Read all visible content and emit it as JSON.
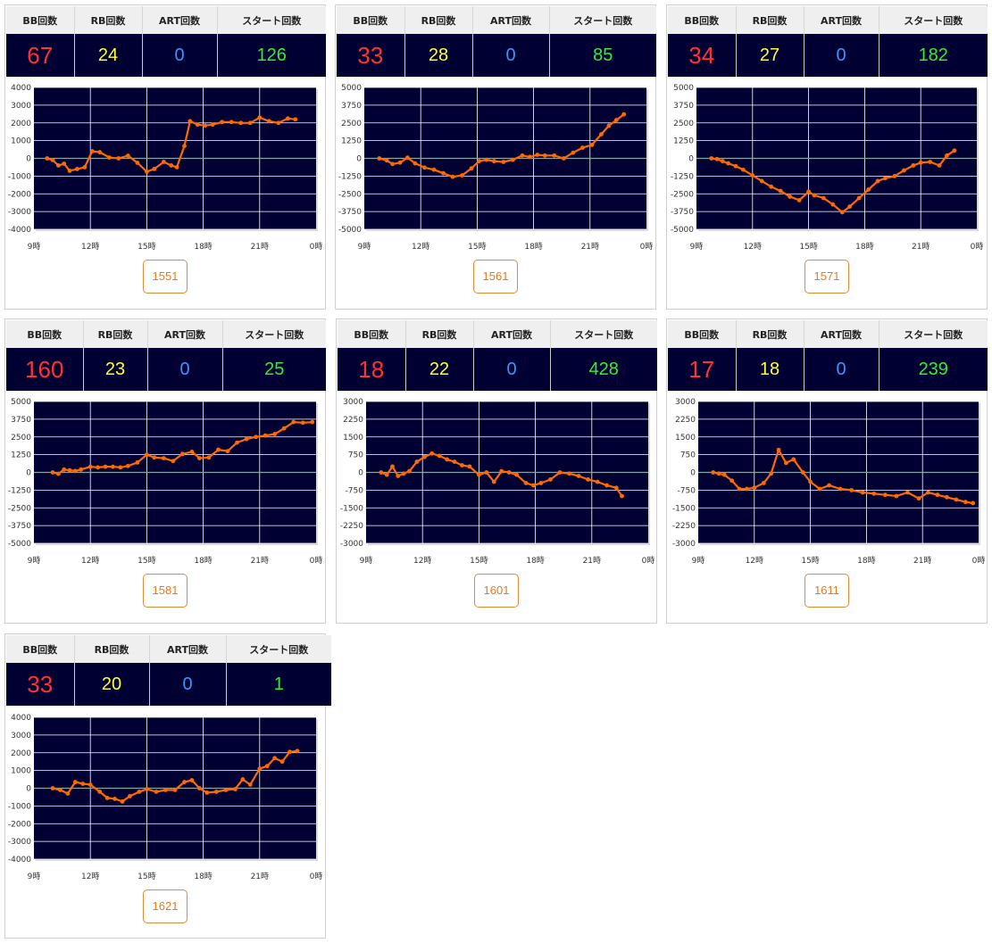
{
  "headers": {
    "bb": "BB回数",
    "rb": "RB回数",
    "art": "ART回数",
    "start": "スタート回数"
  },
  "x_ticks": [
    "9時",
    "12時",
    "15時",
    "18時",
    "21時",
    "0時"
  ],
  "colors": {
    "bb": "#ff3333",
    "rb": "#ffff33",
    "art": "#3399ff",
    "start": "#33ee33",
    "plot_bg": "#000033",
    "line": "#ff6a00",
    "zero_line": "#66cc33",
    "button": "#e07a20"
  },
  "machines": [
    {
      "id": "1551",
      "bb": "67",
      "rb": "24",
      "art": "0",
      "start": "126",
      "chart_data": {
        "type": "line",
        "x_unit": "hour",
        "xlim": [
          9,
          24
        ],
        "ylim": [
          -4000,
          4000
        ],
        "y_ticks": [
          4000,
          3000,
          2000,
          1000,
          0,
          -1000,
          -2000,
          -3000,
          -4000
        ],
        "x": [
          9.7,
          10.0,
          10.3,
          10.6,
          10.9,
          11.3,
          11.7,
          12.1,
          12.5,
          13.0,
          13.5,
          14.0,
          14.5,
          15.0,
          15.4,
          15.9,
          16.3,
          16.6,
          17.0,
          17.3,
          17.7,
          18.1,
          18.5,
          19.0,
          19.5,
          20.0,
          20.5,
          21.0,
          21.5,
          22.0,
          22.5,
          22.9
        ],
        "y": [
          0,
          -100,
          -400,
          -300,
          -700,
          -600,
          -500,
          400,
          350,
          50,
          0,
          150,
          -250,
          -750,
          -600,
          -200,
          -400,
          -500,
          700,
          2100,
          1900,
          1850,
          1900,
          2050,
          2050,
          2000,
          2000,
          2300,
          2100,
          2000,
          2250,
          2200
        ]
      }
    },
    {
      "id": "1561",
      "bb": "33",
      "rb": "28",
      "art": "0",
      "start": "85",
      "chart_data": {
        "type": "line",
        "x_unit": "hour",
        "xlim": [
          9,
          24
        ],
        "ylim": [
          -5000,
          5000
        ],
        "y_ticks": [
          5000,
          3750,
          2500,
          1250,
          0,
          -1250,
          -2500,
          -3750,
          -5000
        ],
        "x": [
          9.8,
          10.2,
          10.5,
          10.9,
          11.3,
          11.7,
          12.2,
          12.7,
          13.2,
          13.7,
          14.2,
          14.7,
          15.1,
          15.5,
          15.9,
          16.4,
          16.9,
          17.4,
          17.8,
          18.2,
          18.6,
          19.1,
          19.6,
          20.1,
          20.6,
          21.1,
          21.6,
          22.0,
          22.4,
          22.8
        ],
        "y": [
          0,
          -150,
          -400,
          -300,
          50,
          -350,
          -650,
          -800,
          -1050,
          -1300,
          -1200,
          -700,
          -200,
          -100,
          -200,
          -250,
          -100,
          200,
          100,
          250,
          200,
          200,
          0,
          400,
          750,
          950,
          1700,
          2300,
          2700,
          3100
        ]
      }
    },
    {
      "id": "1571",
      "bb": "34",
      "rb": "27",
      "art": "0",
      "start": "182",
      "chart_data": {
        "type": "line",
        "x_unit": "hour",
        "xlim": [
          9,
          24
        ],
        "ylim": [
          -5000,
          5000
        ],
        "y_ticks": [
          5000,
          3750,
          2500,
          1250,
          0,
          -1250,
          -2500,
          -3750,
          -5000
        ],
        "x": [
          9.8,
          10.1,
          10.4,
          10.7,
          11.1,
          11.5,
          12.0,
          12.5,
          13.0,
          13.5,
          14.0,
          14.5,
          15.0,
          15.3,
          15.8,
          16.3,
          16.8,
          17.2,
          17.7,
          18.2,
          18.7,
          19.1,
          19.6,
          20.1,
          20.6,
          21.0,
          21.5,
          22.0,
          22.4,
          22.8
        ],
        "y": [
          0,
          -50,
          -200,
          -350,
          -550,
          -800,
          -1200,
          -1600,
          -2000,
          -2300,
          -2700,
          -2950,
          -2350,
          -2600,
          -2800,
          -3250,
          -3800,
          -3400,
          -2800,
          -2200,
          -1600,
          -1400,
          -1250,
          -850,
          -500,
          -300,
          -250,
          -500,
          200,
          550
        ]
      }
    },
    {
      "id": "1581",
      "bb": "160",
      "rb": "23",
      "art": "0",
      "start": "25",
      "chart_data": {
        "type": "line",
        "x_unit": "hour",
        "xlim": [
          9,
          24
        ],
        "ylim": [
          -5000,
          5000
        ],
        "y_ticks": [
          5000,
          3750,
          2500,
          1250,
          0,
          -1250,
          -2500,
          -3750,
          -5000
        ],
        "x": [
          10.0,
          10.3,
          10.6,
          10.9,
          11.2,
          11.5,
          12.0,
          12.4,
          12.8,
          13.2,
          13.6,
          14.0,
          14.5,
          15.0,
          15.4,
          15.9,
          16.4,
          16.9,
          17.4,
          17.8,
          18.3,
          18.8,
          19.3,
          19.8,
          20.3,
          20.8,
          21.3,
          21.8,
          22.3,
          22.8,
          23.3,
          23.8
        ],
        "y": [
          0,
          -100,
          200,
          150,
          100,
          200,
          400,
          350,
          400,
          400,
          350,
          450,
          700,
          1250,
          1050,
          1000,
          800,
          1300,
          1450,
          1000,
          1050,
          1600,
          1500,
          2100,
          2350,
          2500,
          2600,
          2700,
          3100,
          3550,
          3500,
          3550
        ]
      }
    },
    {
      "id": "1601",
      "bb": "18",
      "rb": "22",
      "art": "0",
      "start": "428",
      "chart_data": {
        "type": "line",
        "x_unit": "hour",
        "xlim": [
          9,
          24
        ],
        "ylim": [
          -3000,
          3000
        ],
        "y_ticks": [
          3000,
          2250,
          1500,
          750,
          0,
          -750,
          -1500,
          -2250,
          -3000
        ],
        "x": [
          9.8,
          10.1,
          10.4,
          10.7,
          11.0,
          11.3,
          11.7,
          12.1,
          12.5,
          12.9,
          13.3,
          13.7,
          14.1,
          14.5,
          15.0,
          15.4,
          15.8,
          16.2,
          16.6,
          17.0,
          17.5,
          17.9,
          18.3,
          18.8,
          19.3,
          19.8,
          20.3,
          20.8,
          21.3,
          21.8,
          22.3,
          22.6
        ],
        "y": [
          0,
          -100,
          250,
          -150,
          -50,
          50,
          450,
          650,
          800,
          700,
          550,
          450,
          300,
          250,
          -100,
          0,
          -400,
          50,
          0,
          -100,
          -450,
          -550,
          -450,
          -300,
          0,
          -50,
          -150,
          -300,
          -400,
          -550,
          -650,
          -1000
        ]
      }
    },
    {
      "id": "1611",
      "bb": "17",
      "rb": "18",
      "art": "0",
      "start": "239",
      "chart_data": {
        "type": "line",
        "x_unit": "hour",
        "xlim": [
          9,
          24
        ],
        "ylim": [
          -3000,
          3000
        ],
        "y_ticks": [
          3000,
          2250,
          1500,
          750,
          0,
          -750,
          -1500,
          -2250,
          -3000
        ],
        "x": [
          9.8,
          10.1,
          10.4,
          10.8,
          11.2,
          11.6,
          12.0,
          12.5,
          12.9,
          13.3,
          13.7,
          14.1,
          14.6,
          15.0,
          15.5,
          16.0,
          16.6,
          17.2,
          17.8,
          18.4,
          19.0,
          19.6,
          20.2,
          20.8,
          21.3,
          21.8,
          22.3,
          22.8,
          23.3,
          23.7
        ],
        "y": [
          0,
          -50,
          -100,
          -350,
          -700,
          -700,
          -650,
          -450,
          -50,
          950,
          400,
          550,
          0,
          -400,
          -700,
          -550,
          -700,
          -750,
          -850,
          -900,
          -950,
          -1000,
          -850,
          -1100,
          -850,
          -950,
          -1050,
          -1150,
          -1250,
          -1300
        ]
      }
    },
    {
      "id": "1621",
      "bb": "33",
      "rb": "20",
      "art": "0",
      "start": "1",
      "chart_data": {
        "type": "line",
        "x_unit": "hour",
        "xlim": [
          9,
          24
        ],
        "ylim": [
          -4000,
          4000
        ],
        "y_ticks": [
          4000,
          3000,
          2000,
          1000,
          0,
          -1000,
          -2000,
          -3000,
          -4000
        ],
        "x": [
          10.0,
          10.4,
          10.8,
          11.2,
          11.6,
          12.0,
          12.5,
          12.9,
          13.3,
          13.7,
          14.1,
          14.6,
          15.0,
          15.5,
          16.0,
          16.5,
          17.0,
          17.4,
          17.8,
          18.2,
          18.7,
          19.2,
          19.7,
          20.1,
          20.5,
          21.0,
          21.4,
          21.8,
          22.2,
          22.6,
          23.0
        ],
        "y": [
          0,
          -100,
          -300,
          350,
          250,
          200,
          -200,
          -550,
          -600,
          -750,
          -450,
          -200,
          -50,
          -200,
          -100,
          -100,
          350,
          450,
          0,
          -250,
          -200,
          -100,
          -50,
          500,
          200,
          1100,
          1250,
          1700,
          1500,
          2050,
          2100
        ]
      }
    }
  ]
}
